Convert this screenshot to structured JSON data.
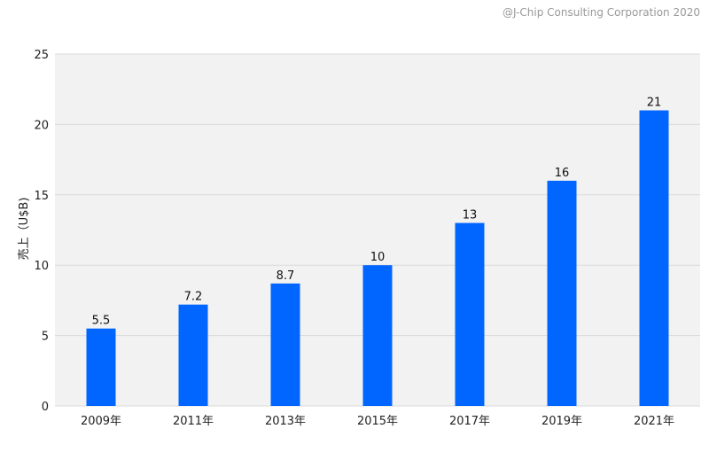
{
  "copyright": "@J-Chip Consulting Corporation 2020",
  "chart_data": {
    "type": "bar",
    "title": "",
    "xlabel": "",
    "ylabel": "売上（U$B)",
    "categories": [
      "2009年",
      "2011年",
      "2013年",
      "2015年",
      "2017年",
      "2019年",
      "2021年"
    ],
    "values": [
      5.5,
      7.2,
      8.7,
      10,
      13,
      16,
      21
    ],
    "value_labels": [
      "5.5",
      "7.2",
      "8.7",
      "10",
      "13",
      "16",
      "21"
    ],
    "ylim": [
      0,
      25
    ],
    "yticks": [
      0,
      5,
      10,
      15,
      20,
      25
    ],
    "grid": true,
    "legend": "none",
    "colors": {
      "bar": "#0066ff",
      "plot_background": "#f2f2f2",
      "grid": "#d9d9d9"
    }
  }
}
